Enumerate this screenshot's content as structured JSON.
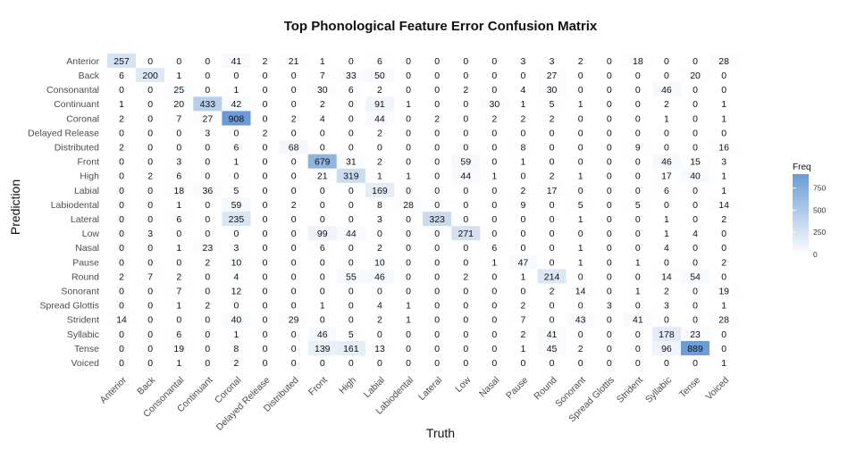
{
  "chart_data": {
    "type": "heatmap",
    "title": "Top Phonological Feature Error Confusion Matrix",
    "xlabel": "Truth",
    "ylabel": "Prediction",
    "x_categories": [
      "Anterior",
      "Back",
      "Consonantal",
      "Continuant",
      "Coronal",
      "Delayed Release",
      "Distributed",
      "Front",
      "High",
      "Labial",
      "Labiodental",
      "Lateral",
      "Low",
      "Nasal",
      "Pause",
      "Round",
      "Sonorant",
      "Spread Glottis",
      "Strident",
      "Syllabic",
      "Tense",
      "Voiced"
    ],
    "y_categories": [
      "Anterior",
      "Back",
      "Consonantal",
      "Continuant",
      "Coronal",
      "Delayed Release",
      "Distributed",
      "Front",
      "High",
      "Labial",
      "Labiodental",
      "Lateral",
      "Low",
      "Nasal",
      "Pause",
      "Round",
      "Sonorant",
      "Spread Glottis",
      "Strident",
      "Syllabic",
      "Tense",
      "Voiced"
    ],
    "values": [
      [
        257,
        0,
        0,
        0,
        41,
        2,
        21,
        1,
        0,
        6,
        0,
        0,
        0,
        0,
        3,
        3,
        2,
        0,
        18,
        0,
        0,
        28
      ],
      [
        6,
        200,
        1,
        0,
        0,
        0,
        0,
        7,
        33,
        50,
        0,
        0,
        0,
        0,
        0,
        27,
        0,
        0,
        0,
        0,
        20,
        0
      ],
      [
        0,
        0,
        25,
        0,
        1,
        0,
        0,
        30,
        6,
        2,
        0,
        0,
        2,
        0,
        4,
        30,
        0,
        0,
        0,
        46,
        0,
        0
      ],
      [
        1,
        0,
        20,
        433,
        42,
        0,
        0,
        2,
        0,
        91,
        1,
        0,
        0,
        30,
        1,
        5,
        1,
        0,
        0,
        2,
        0,
        1
      ],
      [
        2,
        0,
        7,
        27,
        908,
        0,
        2,
        4,
        0,
        44,
        0,
        2,
        0,
        2,
        2,
        2,
        0,
        0,
        0,
        1,
        0,
        1
      ],
      [
        0,
        0,
        0,
        3,
        0,
        2,
        0,
        0,
        0,
        2,
        0,
        0,
        0,
        0,
        0,
        0,
        0,
        0,
        0,
        0,
        0,
        0
      ],
      [
        2,
        0,
        0,
        0,
        6,
        0,
        68,
        0,
        0,
        0,
        0,
        0,
        0,
        0,
        8,
        0,
        0,
        0,
        9,
        0,
        0,
        16
      ],
      [
        0,
        0,
        3,
        0,
        1,
        0,
        0,
        679,
        31,
        2,
        0,
        0,
        59,
        0,
        1,
        0,
        0,
        0,
        0,
        46,
        15,
        3
      ],
      [
        0,
        2,
        6,
        0,
        0,
        0,
        0,
        21,
        319,
        1,
        1,
        0,
        44,
        1,
        0,
        2,
        1,
        0,
        0,
        17,
        40,
        1
      ],
      [
        0,
        0,
        18,
        36,
        5,
        0,
        0,
        0,
        0,
        169,
        0,
        0,
        0,
        0,
        2,
        17,
        0,
        0,
        0,
        6,
        0,
        1
      ],
      [
        0,
        0,
        1,
        0,
        59,
        0,
        2,
        0,
        0,
        8,
        28,
        0,
        0,
        0,
        9,
        0,
        5,
        0,
        5,
        0,
        0,
        14
      ],
      [
        0,
        0,
        6,
        0,
        235,
        0,
        0,
        0,
        0,
        3,
        0,
        323,
        0,
        0,
        0,
        0,
        1,
        0,
        0,
        1,
        0,
        2
      ],
      [
        0,
        3,
        0,
        0,
        0,
        0,
        0,
        99,
        44,
        0,
        0,
        0,
        271,
        0,
        0,
        0,
        0,
        0,
        0,
        1,
        4,
        0
      ],
      [
        0,
        0,
        1,
        23,
        3,
        0,
        0,
        6,
        0,
        2,
        0,
        0,
        0,
        6,
        0,
        0,
        1,
        0,
        0,
        4,
        0,
        0
      ],
      [
        0,
        0,
        0,
        2,
        10,
        0,
        0,
        0,
        0,
        10,
        0,
        0,
        0,
        1,
        47,
        0,
        1,
        0,
        1,
        0,
        0,
        2
      ],
      [
        2,
        7,
        2,
        0,
        4,
        0,
        0,
        0,
        55,
        46,
        0,
        0,
        2,
        0,
        1,
        214,
        0,
        0,
        0,
        14,
        54,
        0
      ],
      [
        0,
        0,
        7,
        0,
        12,
        0,
        0,
        0,
        0,
        0,
        0,
        0,
        0,
        0,
        0,
        2,
        14,
        0,
        1,
        2,
        0,
        19
      ],
      [
        0,
        0,
        1,
        2,
        0,
        0,
        0,
        1,
        0,
        4,
        1,
        0,
        0,
        0,
        2,
        0,
        0,
        3,
        0,
        3,
        0,
        1
      ],
      [
        14,
        0,
        0,
        0,
        40,
        0,
        29,
        0,
        0,
        2,
        1,
        0,
        0,
        0,
        7,
        0,
        43,
        0,
        41,
        0,
        0,
        28
      ],
      [
        0,
        0,
        6,
        0,
        1,
        0,
        0,
        46,
        5,
        0,
        0,
        0,
        0,
        0,
        2,
        41,
        0,
        0,
        0,
        178,
        23,
        0
      ],
      [
        0,
        0,
        19,
        0,
        8,
        0,
        0,
        139,
        161,
        13,
        0,
        0,
        0,
        0,
        1,
        45,
        2,
        0,
        0,
        96,
        889,
        0
      ],
      [
        0,
        0,
        1,
        0,
        2,
        0,
        0,
        0,
        0,
        0,
        0,
        0,
        0,
        0,
        0,
        0,
        0,
        0,
        0,
        0,
        0,
        1
      ]
    ],
    "legend": {
      "title": "Freq",
      "ticks": [
        0,
        250,
        500,
        750
      ],
      "range": [
        0,
        908
      ],
      "low_color": "#ffffff",
      "high_color": "#6a9bd6",
      "placement": "right"
    },
    "grid": false
  }
}
